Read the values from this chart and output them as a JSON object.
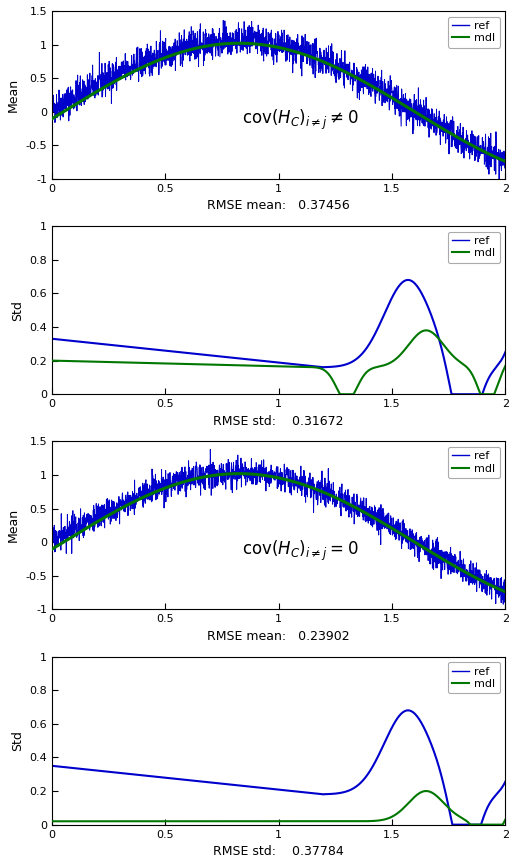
{
  "xlim": [
    0,
    2
  ],
  "x_ticks": [
    0,
    0.5,
    1,
    1.5,
    2
  ],
  "plot1_ylim": [
    -1,
    1.5
  ],
  "plot1_yticks": [
    -1,
    -0.5,
    0,
    0.5,
    1,
    1.5
  ],
  "plot1_ylabel": "Mean",
  "plot1_xlabel": "RMSE mean:   0.37456",
  "plot2_ylim": [
    0,
    1
  ],
  "plot2_yticks": [
    0,
    0.2,
    0.4,
    0.6,
    0.8,
    1
  ],
  "plot2_ylabel": "Std",
  "plot2_xlabel": "RMSE std:    0.31672",
  "plot3_ylim": [
    -1,
    1.5
  ],
  "plot3_yticks": [
    -1,
    -0.5,
    0,
    0.5,
    1,
    1.5
  ],
  "plot3_ylabel": "Mean",
  "plot3_xlabel": "RMSE mean:   0.23902",
  "plot4_ylim": [
    0,
    1
  ],
  "plot4_yticks": [
    0,
    0.2,
    0.4,
    0.6,
    0.8,
    1
  ],
  "plot4_ylabel": "Std",
  "plot4_xlabel": "RMSE std:    0.37784",
  "ref_color": "#0000CC",
  "mdl_color": "#007700",
  "fig_width": 5.16,
  "fig_height": 8.65
}
